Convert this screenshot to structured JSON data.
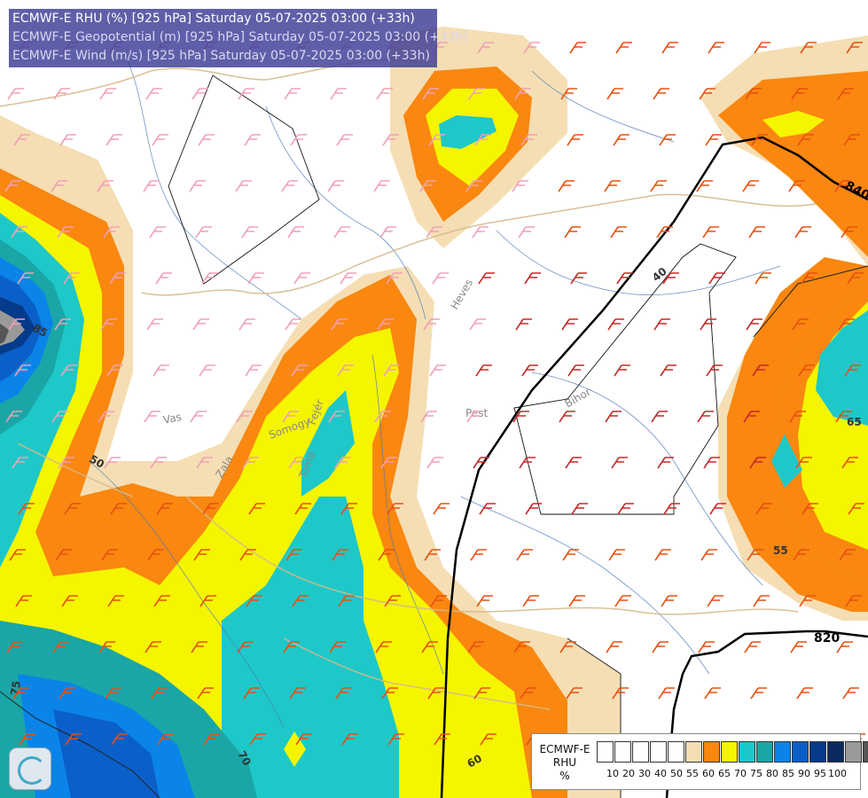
{
  "header": {
    "line1": "ECMWF-E RHU (%) [925 hPa] Saturday 05-07-2025 03:00 (+33h)",
    "line2": "ECMWF-E Geopotential (m) [925 hPa] Saturday 05-07-2025 03:00 (+33h)",
    "line3": "ECMWF-E Wind (m/s) [925 hPa] Saturday 05-07-2025 03:00 (+33h)"
  },
  "legend": {
    "title_line1": "ECMWF-E",
    "title_line2": "RHU",
    "title_line3": "%",
    "colors": [
      "#ffffff",
      "#ffffff",
      "#ffffff",
      "#ffffff",
      "#ffffff",
      "#f5deb3",
      "#f98710",
      "#f5f500",
      "#1ec8c8",
      "#1aa6a6",
      "#0a84e8",
      "#0b5fc8",
      "#063a8a",
      "#0a2a5e",
      "#9a9a9a",
      "#555555"
    ],
    "ticks": [
      "10",
      "20",
      "30",
      "40",
      "50",
      "55",
      "60",
      "65",
      "70",
      "75",
      "80",
      "85",
      "90",
      "95",
      "100"
    ]
  },
  "map": {
    "geopotential_labels": [
      "840",
      "820"
    ],
    "rhu_contour_labels": [
      "40",
      "50",
      "55",
      "60",
      "65",
      "70",
      "75",
      "85"
    ],
    "region_labels": [
      "Vas",
      "Zala",
      "Somogy",
      "Tolna",
      "Fejér",
      "Pest",
      "Heves",
      "Bihor"
    ]
  }
}
